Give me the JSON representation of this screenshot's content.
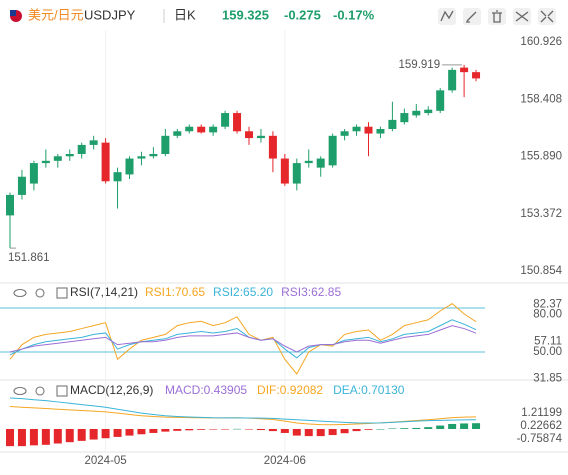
{
  "header": {
    "pair": "美元/日元",
    "symbol": "USDJPY",
    "period": "日K",
    "price": "159.325",
    "change": "-0.275",
    "change_pct": "-0.17%"
  },
  "chart_data": [
    {
      "type": "candlestick",
      "categories": [
        null,
        null,
        null,
        null,
        null,
        null,
        null,
        null,
        "2024-05",
        null,
        null,
        null,
        null,
        null,
        null,
        null,
        null,
        null,
        null,
        null,
        null,
        null,
        null,
        "2024-06",
        null,
        null,
        null,
        null,
        null,
        null,
        null,
        null,
        null,
        null,
        null,
        null,
        null,
        null,
        null,
        null
      ],
      "open": [
        153.3,
        154.2,
        154.7,
        155.6,
        155.7,
        155.9,
        156.0,
        156.4,
        156.5,
        154.8,
        155.1,
        155.8,
        155.9,
        156.0,
        156.8,
        157.0,
        157.2,
        156.95,
        157.2,
        157.8,
        157.0,
        156.7,
        156.8,
        155.8,
        154.7,
        155.6,
        155.4,
        155.5,
        156.8,
        157.0,
        157.2,
        156.9,
        157.1,
        157.4,
        157.7,
        157.8,
        157.9,
        158.8,
        159.8,
        159.6
      ],
      "high": [
        154.3,
        155.3,
        155.7,
        156.2,
        156.0,
        156.2,
        156.5,
        156.8,
        156.7,
        155.4,
        155.9,
        156.1,
        156.3,
        157.1,
        157.1,
        157.3,
        157.3,
        157.3,
        157.9,
        157.9,
        157.2,
        157.1,
        157.0,
        156.0,
        155.8,
        156.2,
        155.9,
        156.9,
        157.1,
        157.3,
        157.4,
        157.2,
        158.3,
        158.0,
        158.2,
        158.1,
        158.9,
        159.8,
        159.919,
        159.7
      ],
      "low": [
        151.861,
        154.0,
        154.4,
        155.4,
        155.4,
        155.7,
        155.8,
        156.2,
        154.7,
        153.6,
        154.9,
        155.5,
        155.8,
        155.9,
        156.7,
        156.9,
        156.9,
        156.8,
        157.1,
        156.9,
        156.4,
        156.5,
        155.2,
        154.6,
        154.4,
        155.4,
        155.0,
        155.4,
        156.6,
        156.8,
        155.9,
        156.7,
        157.0,
        157.3,
        157.6,
        157.7,
        157.8,
        158.7,
        158.5,
        159.2
      ],
      "close": [
        154.2,
        155.0,
        155.6,
        155.7,
        155.9,
        156.0,
        156.4,
        156.6,
        154.8,
        155.2,
        155.8,
        155.9,
        156.0,
        156.8,
        157.0,
        157.2,
        156.95,
        157.2,
        157.8,
        157.0,
        156.7,
        156.8,
        155.8,
        154.7,
        155.6,
        155.7,
        155.8,
        156.8,
        157.0,
        157.2,
        156.9,
        157.1,
        157.5,
        157.8,
        157.9,
        157.95,
        158.8,
        159.7,
        159.6,
        159.325
      ],
      "up_color": "#1e9e6a",
      "down_color": "#e5262a",
      "ylim": [
        150.458,
        161.454
      ],
      "yticks": [
        160.926,
        158.408,
        {
          "value": 155.89,
          "label": "155.890"
        },
        153.372,
        150.854
      ]
    },
    {
      "type": "line",
      "title": "RSI(7,14,21)",
      "series": [
        {
          "name": "RSI1:70.65",
          "color": "#f5a623",
          "values": [
            45,
            55,
            60,
            62,
            63,
            64,
            66,
            68,
            70,
            45,
            52,
            58,
            60,
            62,
            68,
            70,
            71,
            68,
            70,
            74,
            62,
            58,
            60,
            45,
            35,
            50,
            55,
            54,
            62,
            64,
            65,
            58,
            62,
            68,
            70,
            72,
            78,
            83,
            76,
            70.65
          ]
        },
        {
          "name": "RSI2:65.20",
          "color": "#3bb4d8",
          "values": [
            48,
            52,
            55,
            57,
            58,
            59,
            60,
            62,
            63,
            52,
            55,
            57,
            58,
            59,
            62,
            63,
            64,
            63,
            64,
            66,
            60,
            58,
            59,
            52,
            46,
            53,
            55,
            55,
            58,
            59,
            60,
            57,
            59,
            62,
            63,
            64,
            68,
            72,
            69,
            65.2
          ]
        },
        {
          "name": "RSI3:62.85",
          "color": "#9b6fd6",
          "values": [
            50,
            52,
            54,
            55,
            56,
            57,
            58,
            59,
            60,
            55,
            56,
            57,
            57,
            58,
            60,
            61,
            61,
            61,
            62,
            63,
            60,
            58,
            59,
            54,
            50,
            54,
            55,
            55,
            57,
            58,
            58,
            56,
            58,
            60,
            61,
            62,
            65,
            68,
            66,
            62.85
          ]
        }
      ],
      "ylim": [
        29.5,
        85.5
      ],
      "yticks": [
        {
          "value": 80,
          "label": "80.00"
        },
        82.37,
        57.11,
        {
          "value": 50,
          "label": "50.00"
        },
        31.85
      ],
      "hlines": [
        80,
        50
      ],
      "hline_color": "#5bc0de"
    },
    {
      "type": "macd",
      "title": "MACD(12,26,9)",
      "series": [
        {
          "name": "MACD:0.43905",
          "kind": "bar",
          "color": "#9b6fd6",
          "up_color": "#1e9e6a",
          "down_color": "#e5262a",
          "values": [
            -1.3,
            -1.3,
            -1.24,
            -1.2,
            -1.1,
            -1.0,
            -0.9,
            -0.8,
            -0.7,
            -0.6,
            -0.5,
            -0.4,
            -0.3,
            -0.2,
            -0.14,
            -0.1,
            -0.06,
            -0.02,
            -0.01,
            0.01,
            -0.03,
            -0.08,
            -0.16,
            -0.3,
            -0.5,
            -0.54,
            -0.54,
            -0.46,
            -0.32,
            -0.16,
            -0.06,
            0,
            0.04,
            0.06,
            0.08,
            0.14,
            0.26,
            0.38,
            0.42,
            0.43905
          ]
        },
        {
          "name": "DIF:0.92082",
          "kind": "line",
          "color": "#f5a623",
          "values": [
            1.7,
            1.65,
            1.6,
            1.55,
            1.5,
            1.45,
            1.4,
            1.35,
            1.3,
            1.2,
            1.1,
            1.0,
            0.95,
            0.9,
            0.88,
            0.86,
            0.85,
            0.84,
            0.84,
            0.85,
            0.82,
            0.78,
            0.72,
            0.6,
            0.45,
            0.38,
            0.33,
            0.32,
            0.34,
            0.38,
            0.42,
            0.46,
            0.52,
            0.58,
            0.64,
            0.7,
            0.78,
            0.86,
            0.9,
            0.92082
          ]
        },
        {
          "name": "DEA:0.70130",
          "kind": "line",
          "color": "#3bb4d8",
          "values": [
            2.35,
            2.3,
            2.22,
            2.15,
            2.05,
            1.95,
            1.85,
            1.75,
            1.65,
            1.5,
            1.35,
            1.2,
            1.1,
            1.0,
            0.95,
            0.91,
            0.88,
            0.85,
            0.845,
            0.845,
            0.835,
            0.82,
            0.8,
            0.75,
            0.7,
            0.65,
            0.6,
            0.55,
            0.5,
            0.46,
            0.45,
            0.46,
            0.5,
            0.55,
            0.6,
            0.63,
            0.65,
            0.67,
            0.69,
            0.7013
          ]
        }
      ],
      "ylim": [
        -1.744,
        2.576
      ],
      "yticks": [
        1.21199,
        0.22662,
        -0.75874
      ]
    }
  ]
}
